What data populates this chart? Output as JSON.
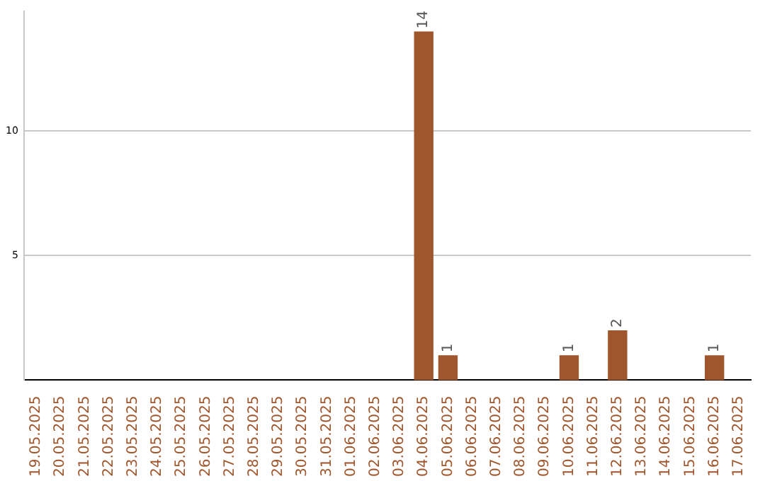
{
  "chart_data": {
    "type": "bar",
    "categories": [
      "19.05.2025",
      "20.05.2025",
      "21.05.2025",
      "22.05.2025",
      "23.05.2025",
      "24.05.2025",
      "25.05.2025",
      "26.05.2025",
      "27.05.2025",
      "28.05.2025",
      "29.05.2025",
      "30.05.2025",
      "31.05.2025",
      "01.06.2025",
      "02.06.2025",
      "03.06.2025",
      "04.06.2025",
      "05.06.2025",
      "06.06.2025",
      "07.06.2025",
      "08.06.2025",
      "09.06.2025",
      "10.06.2025",
      "11.06.2025",
      "12.06.2025",
      "13.06.2025",
      "14.06.2025",
      "15.06.2025",
      "16.06.2025",
      "17.06.2025"
    ],
    "values": [
      0,
      0,
      0,
      0,
      0,
      0,
      0,
      0,
      0,
      0,
      0,
      0,
      0,
      0,
      0,
      0,
      14,
      1,
      0,
      0,
      0,
      0,
      1,
      0,
      2,
      0,
      0,
      0,
      1,
      0
    ],
    "value_labels": [
      null,
      null,
      null,
      null,
      null,
      null,
      null,
      null,
      null,
      null,
      null,
      null,
      null,
      null,
      null,
      null,
      "14",
      "1",
      null,
      null,
      null,
      null,
      "1",
      null,
      "2",
      null,
      null,
      null,
      "1",
      null
    ],
    "color": "#a0562c",
    "ylim": [
      0,
      14.8
    ],
    "yticks": [
      5,
      10
    ],
    "grid": "y",
    "legend": false
  }
}
